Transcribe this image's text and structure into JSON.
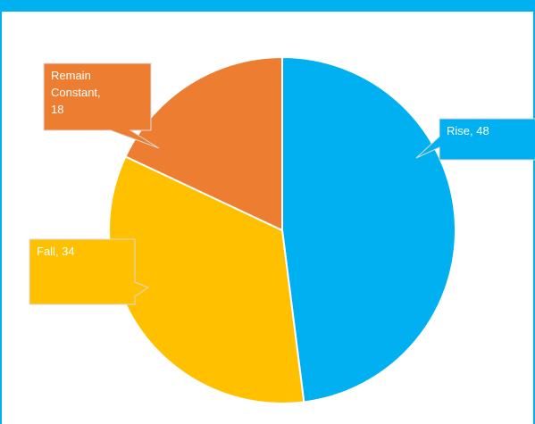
{
  "colors": {
    "frame": "#00b0f0"
  },
  "chart_data": {
    "type": "pie",
    "slices": [
      {
        "name": "Rise",
        "value": 48,
        "color": "#00b0f0",
        "label_lines": [
          "Rise, 48"
        ]
      },
      {
        "name": "Fall",
        "value": 34,
        "color": "#ffc000",
        "label_lines": [
          "Fall, 34"
        ]
      },
      {
        "name": "Remain Constant",
        "value": 18,
        "color": "#ed7d31",
        "label_lines": [
          "Remain",
          "Constant,",
          "18"
        ]
      }
    ],
    "legend": "none",
    "data_labels": "callouts"
  }
}
